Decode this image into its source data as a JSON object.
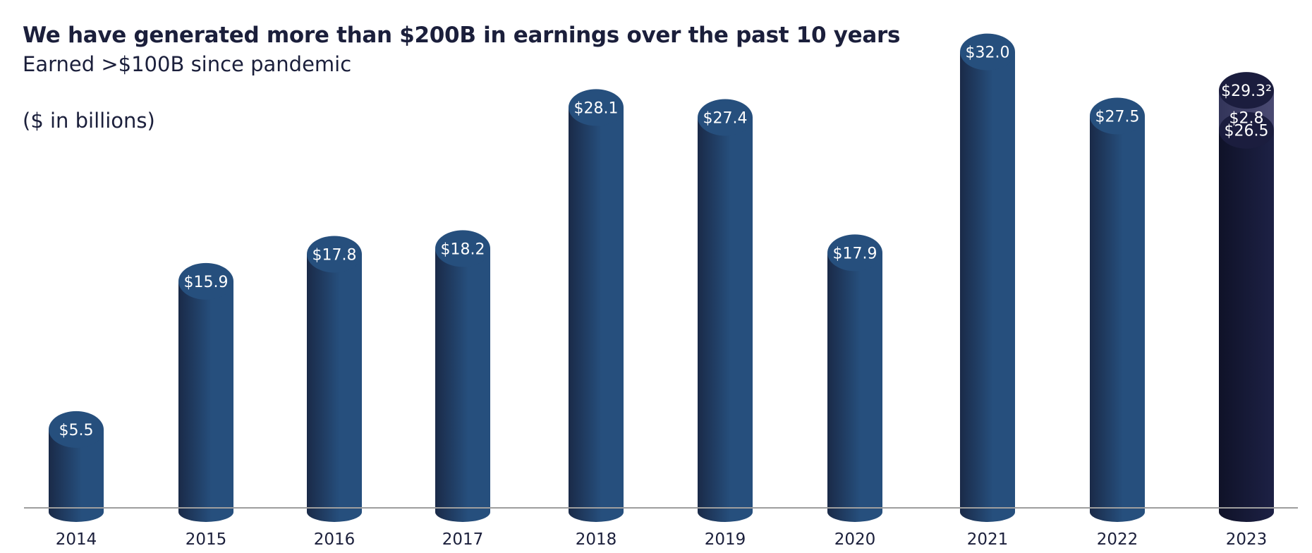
{
  "header": {
    "title": "We have generated more than $200B in earnings over the past 10 years",
    "subtitle": "Earned >$100B since pandemic",
    "units": "($ in billions)"
  },
  "colors": {
    "bar_light": "#264f7d",
    "bar_dark": "#1a2a48",
    "bar_2023_dark": "#161a37",
    "bar_2023_mid": "#3f4067",
    "axis": "#9e9e9e"
  },
  "chart_data": {
    "type": "bar",
    "title": "We have generated more than $200B in earnings over the past 10 years",
    "subtitle": "Earned >$100B since pandemic",
    "ylabel": "($ in billions)",
    "ylim": [
      0,
      34
    ],
    "categories": [
      "2014",
      "2015",
      "2016",
      "2017",
      "2018",
      "2019",
      "2020",
      "2021",
      "2022",
      "2023"
    ],
    "values": [
      5.5,
      15.9,
      17.8,
      18.2,
      28.1,
      27.4,
      17.9,
      32.0,
      27.5,
      29.3
    ],
    "labels": [
      "$5.5",
      "$15.9",
      "$17.8",
      "$18.2",
      "$28.1",
      "$27.4",
      "$17.9",
      "$32.0",
      "$27.5",
      "$29.3²"
    ],
    "stacked_2023": {
      "category": "2023",
      "segments": [
        {
          "value": 26.5,
          "label": "$26.5"
        },
        {
          "value": 2.8,
          "label": "$2.8"
        }
      ],
      "total_label": "$29.3²"
    }
  }
}
